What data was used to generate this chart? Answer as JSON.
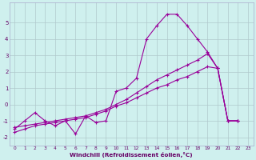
{
  "xlabel": "Windchill (Refroidissement éolien,°C)",
  "background_color": "#cff0ee",
  "grid_color": "#b0c8cc",
  "line_color": "#990099",
  "ylim": [
    -2.5,
    6.2
  ],
  "xlim": [
    -0.5,
    23.5
  ],
  "yticks": [
    -2,
    -1,
    0,
    1,
    2,
    3,
    4,
    5
  ],
  "xticks": [
    0,
    1,
    2,
    3,
    4,
    5,
    6,
    7,
    8,
    9,
    10,
    11,
    12,
    13,
    14,
    15,
    16,
    17,
    18,
    19,
    20,
    21,
    22,
    23
  ],
  "line1_x": [
    0,
    1,
    2,
    3,
    4,
    5,
    6,
    7,
    8,
    9,
    10,
    11,
    12,
    13,
    14,
    15,
    16,
    17,
    18,
    19,
    20,
    21,
    22
  ],
  "line1_y": [
    -1.5,
    -1.0,
    -0.5,
    -1.0,
    -1.3,
    -1.0,
    -1.8,
    -0.7,
    -1.1,
    -1.0,
    0.8,
    1.0,
    1.6,
    4.0,
    4.8,
    5.5,
    5.5,
    4.8,
    4.0,
    3.2,
    2.2,
    -1.0,
    -1.0
  ],
  "line2_x": [
    0,
    1,
    2,
    3,
    4,
    5,
    6,
    7,
    8,
    9,
    10,
    11,
    12,
    13,
    14,
    15,
    16,
    17,
    18,
    19,
    20,
    21,
    22
  ],
  "line2_y": [
    -1.4,
    -1.3,
    -1.2,
    -1.1,
    -1.0,
    -0.9,
    -0.8,
    -0.7,
    -0.5,
    -0.3,
    0.0,
    0.3,
    0.7,
    1.1,
    1.5,
    1.8,
    2.1,
    2.4,
    2.7,
    3.1,
    2.2,
    -1.0,
    -1.0
  ],
  "line3_x": [
    0,
    1,
    2,
    3,
    4,
    5,
    6,
    7,
    8,
    9,
    10,
    11,
    12,
    13,
    14,
    15,
    16,
    17,
    18,
    19,
    20,
    21,
    22
  ],
  "line3_y": [
    -1.7,
    -1.5,
    -1.3,
    -1.2,
    -1.1,
    -1.0,
    -0.9,
    -0.8,
    -0.6,
    -0.4,
    -0.1,
    0.1,
    0.4,
    0.7,
    1.0,
    1.2,
    1.5,
    1.7,
    2.0,
    2.3,
    2.2,
    -1.0,
    -1.0
  ]
}
